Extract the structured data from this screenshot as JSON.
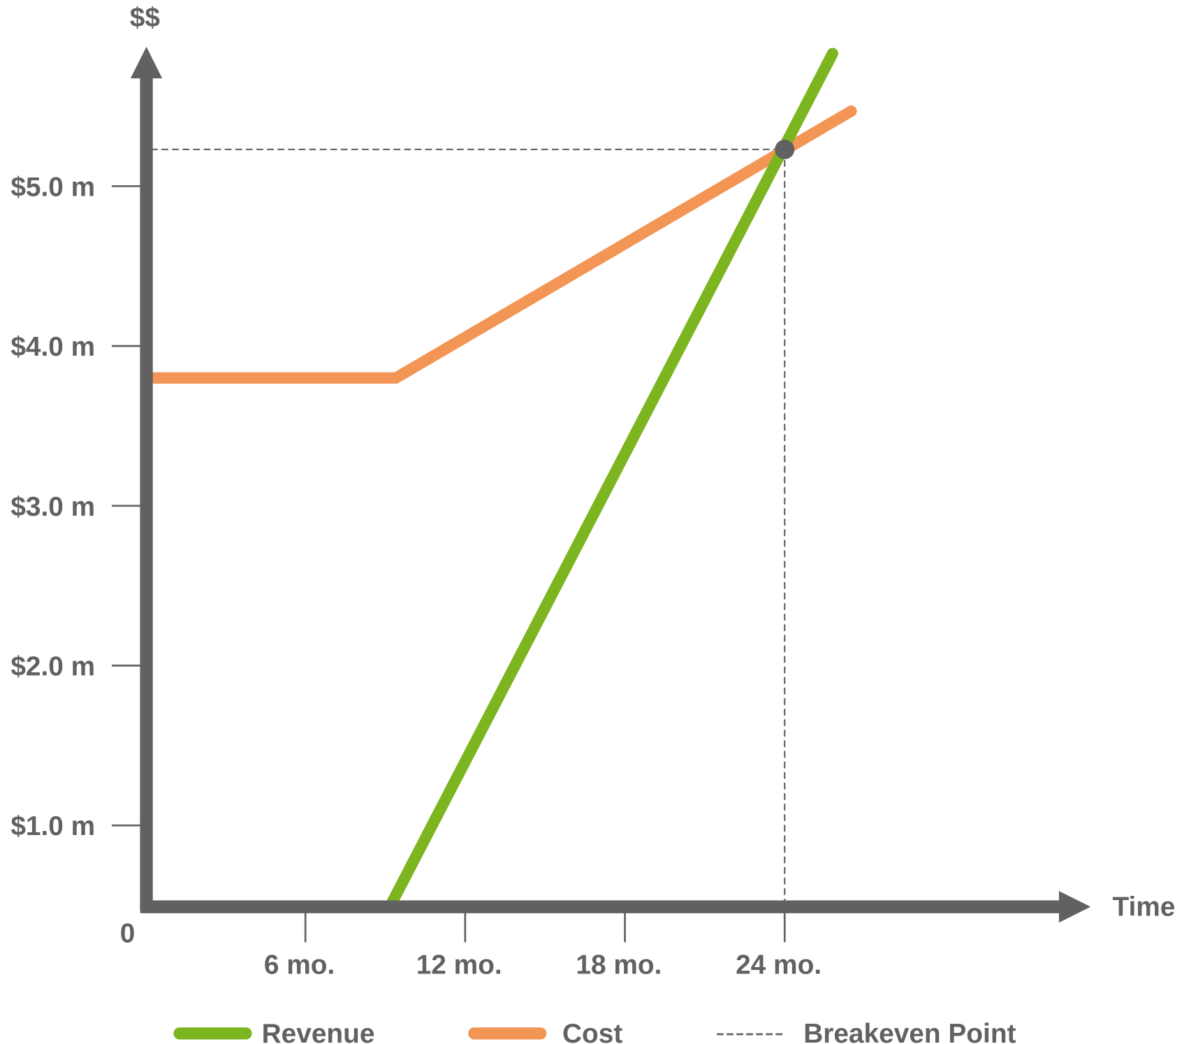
{
  "chart_data": {
    "type": "line",
    "title": "",
    "xlabel": "Time",
    "ylabel": "$$",
    "origin_label": "0",
    "x_unit": "months",
    "y_unit": "$ millions",
    "xlim": [
      0,
      34
    ],
    "ylim": [
      0.5,
      6.2
    ],
    "x_ticks": [
      {
        "value": 6,
        "label": "6 mo."
      },
      {
        "value": 12,
        "label": "12 mo."
      },
      {
        "value": 18,
        "label": "18 mo."
      },
      {
        "value": 24,
        "label": "24 mo."
      }
    ],
    "y_ticks": [
      {
        "value": 1,
        "label": "$1.0 m"
      },
      {
        "value": 2,
        "label": "$2.0 m"
      },
      {
        "value": 3,
        "label": "$3.0 m"
      },
      {
        "value": 4,
        "label": "$4.0 m"
      },
      {
        "value": 5,
        "label": "$5.0 m"
      }
    ],
    "grid": false,
    "series": [
      {
        "name": "Revenue",
        "color": "#7cb520",
        "points": [
          [
            9.2,
            0.5
          ],
          [
            25.8,
            5.83
          ]
        ]
      },
      {
        "name": "Cost",
        "color": "#f29555",
        "points": [
          [
            0.2,
            3.8
          ],
          [
            9.4,
            3.8
          ],
          [
            26.5,
            5.47
          ]
        ]
      }
    ],
    "breakeven": {
      "name": "Breakeven Point",
      "x": 24,
      "y": 5.23,
      "color": "#616161"
    },
    "legend": {
      "position": "bottom",
      "items": [
        "Revenue",
        "Cost",
        "Breakeven Point"
      ]
    }
  }
}
